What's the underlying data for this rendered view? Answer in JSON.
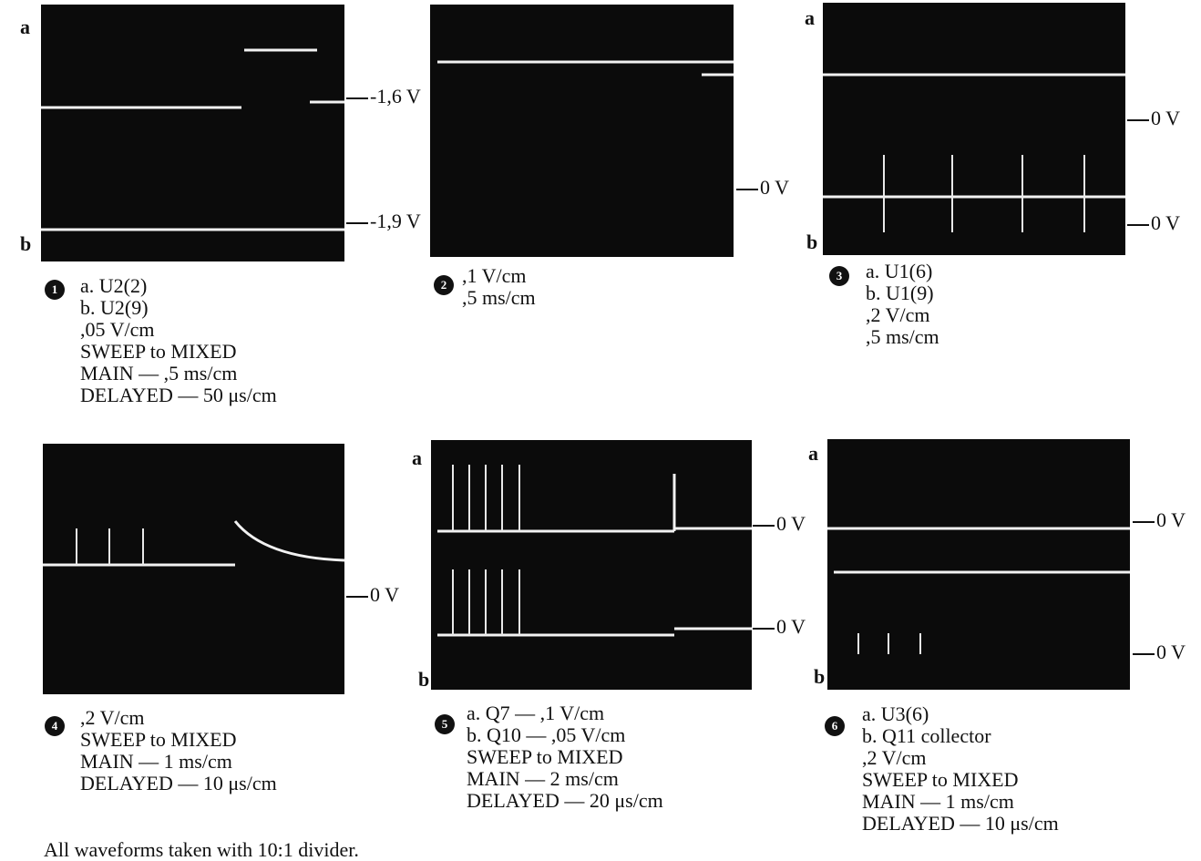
{
  "panels": [
    {
      "number": "1",
      "side_labels": [
        "a",
        "b"
      ],
      "levels": [
        "-1,6 V",
        "-1,9 V"
      ],
      "caption": [
        "a. U2(2)",
        "b. U2(9)",
        ",05 V/cm",
        "SWEEP to MIXED",
        "MAIN — ,5 ms/cm",
        "DELAYED — 50 μs/cm"
      ]
    },
    {
      "number": "2",
      "side_labels": [],
      "levels": [
        "0 V"
      ],
      "caption": [
        ",1 V/cm",
        ",5 ms/cm"
      ]
    },
    {
      "number": "3",
      "side_labels": [
        "a",
        "b"
      ],
      "levels": [
        "0 V",
        "0 V"
      ],
      "caption": [
        "a. U1(6)",
        "b. U1(9)",
        ",2 V/cm",
        ",5 ms/cm"
      ]
    },
    {
      "number": "4",
      "side_labels": [],
      "levels": [
        "0 V"
      ],
      "caption": [
        ",2 V/cm",
        "SWEEP to MIXED",
        "MAIN — 1 ms/cm",
        "DELAYED — 10 μs/cm"
      ]
    },
    {
      "number": "5",
      "side_labels": [
        "a",
        "b"
      ],
      "levels": [
        "0 V",
        "0 V"
      ],
      "caption": [
        "a. Q7 — ,1 V/cm",
        "b. Q10 — ,05 V/cm",
        "SWEEP to MIXED",
        "MAIN — 2 ms/cm",
        "DELAYED — 20 μs/cm"
      ]
    },
    {
      "number": "6",
      "side_labels": [
        "a",
        "b"
      ],
      "levels": [
        "0 V",
        "0 V"
      ],
      "caption": [
        "a. U3(6)",
        "b. Q11 collector",
        ",2 V/cm",
        "SWEEP to MIXED",
        "MAIN — 1 ms/cm",
        "DELAYED — 10 μs/cm"
      ]
    }
  ],
  "footer": "All waveforms taken with 10:1 divider."
}
